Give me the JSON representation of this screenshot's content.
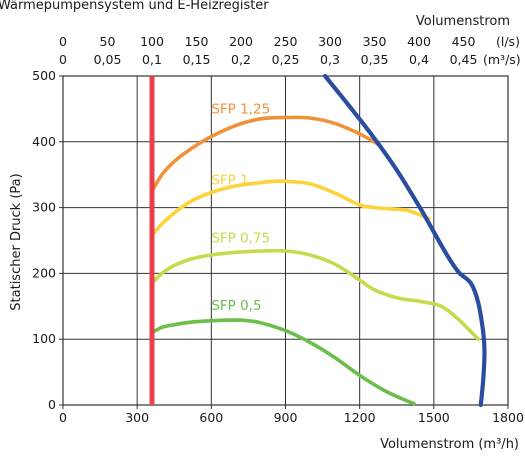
{
  "chart_data": {
    "type": "line",
    "title": "Wärmepumpensystem und E-Heizregister",
    "xlabel": "Volumenstrom (m³/h)",
    "ylabel": "Statischer Druck (Pa)",
    "top_axis_title": "Volumenstrom",
    "xlim": [
      0,
      1800
    ],
    "ylim": [
      0,
      500
    ],
    "x_ticks": [
      "0",
      "300",
      "600",
      "900",
      "1200",
      "1500",
      "1800"
    ],
    "y_ticks": [
      "0",
      "100",
      "200",
      "300",
      "400",
      "500"
    ],
    "top_ls_unit": "(l/s)",
    "top_ls_ticks": [
      "0",
      "50",
      "100",
      "150",
      "200",
      "250",
      "300",
      "350",
      "400",
      "450"
    ],
    "top_m3s_unit": "(m³/s)",
    "top_m3s_ticks": [
      "0",
      "0,05",
      "0,1",
      "0,15",
      "0,2",
      "0,25",
      "0,3",
      "0,35",
      "0,4",
      "0,45"
    ],
    "series": [
      {
        "name": "SFP 1,25",
        "color": "#f0923a",
        "x": [
          360,
          400,
          450,
          520,
          600,
          700,
          800,
          900,
          1000,
          1100,
          1200,
          1280
        ],
        "y": [
          325,
          350,
          370,
          390,
          408,
          425,
          435,
          437,
          436,
          428,
          412,
          395
        ]
      },
      {
        "name": "SFP 1",
        "color": "#fdd23a",
        "x": [
          360,
          400,
          450,
          520,
          600,
          700,
          800,
          850,
          900,
          1000,
          1100,
          1200,
          1260,
          1330,
          1400,
          1480
        ],
        "y": [
          258,
          275,
          292,
          310,
          323,
          333,
          338,
          340,
          340,
          336,
          322,
          304,
          300,
          298,
          295,
          283
        ]
      },
      {
        "name": "SFP 0,75",
        "color": "#c8d94e",
        "x": [
          360,
          400,
          450,
          520,
          600,
          700,
          800,
          900,
          1000,
          1100,
          1200,
          1260,
          1350,
          1450,
          1530,
          1600,
          1680
        ],
        "y": [
          185,
          200,
          212,
          222,
          228,
          232,
          234,
          234,
          228,
          214,
          190,
          175,
          163,
          157,
          150,
          130,
          100
        ]
      },
      {
        "name": "SFP 0,5",
        "color": "#6cbe4a",
        "x": [
          360,
          400,
          450,
          520,
          600,
          700,
          750,
          800,
          900,
          1000,
          1100,
          1200,
          1300,
          1380,
          1420
        ],
        "y": [
          110,
          118,
          122,
          126,
          128,
          129,
          128,
          125,
          113,
          95,
          72,
          45,
          22,
          8,
          2
        ]
      },
      {
        "name": "",
        "color": "#2b4da1",
        "x": [
          1060,
          1150,
          1250,
          1350,
          1450,
          1550,
          1600,
          1650,
          1680,
          1700,
          1705,
          1700,
          1690
        ],
        "y": [
          500,
          458,
          410,
          357,
          296,
          230,
          202,
          185,
          155,
          110,
          80,
          40,
          0
        ]
      }
    ],
    "vertical_line": {
      "x": 360,
      "color": "#e8404b"
    }
  }
}
